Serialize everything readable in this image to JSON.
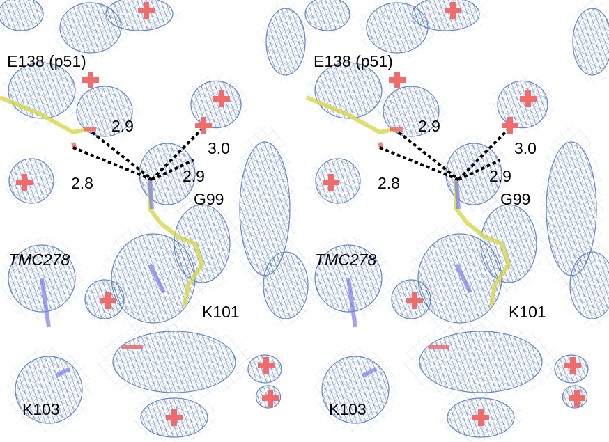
{
  "panels": [
    {
      "labels": [
        "E138 (p51)",
        "2.9",
        "3.0",
        "2.8",
        "2.9",
        "G99",
        "TMC278",
        "K101",
        "K103"
      ]
    },
    {
      "labels": [
        "E138 (p51)",
        "2.9",
        "3.0",
        "2.8",
        "2.9",
        "G99",
        "TMC278",
        "K101",
        "K103"
      ]
    }
  ]
}
